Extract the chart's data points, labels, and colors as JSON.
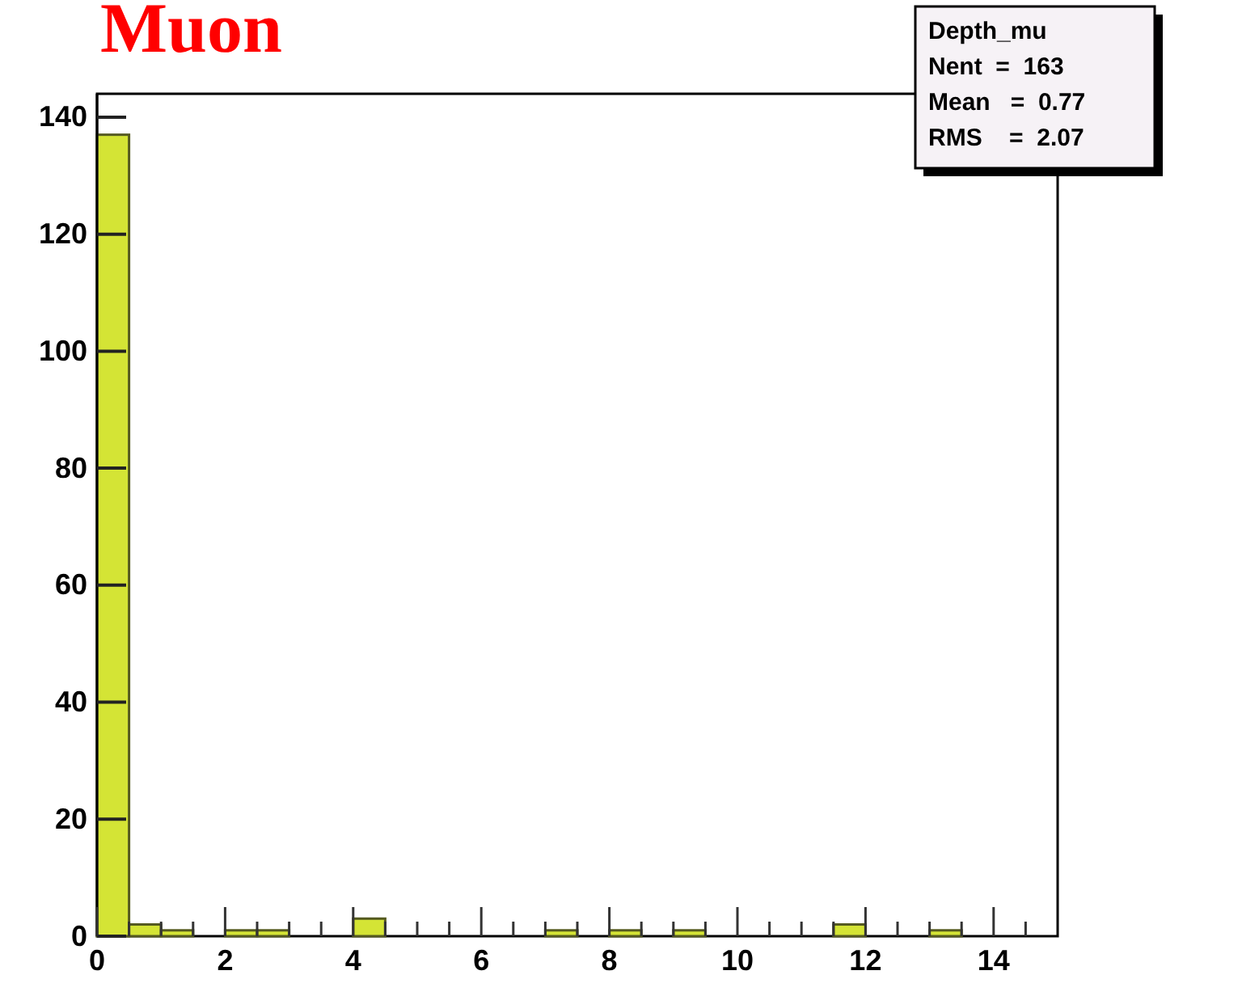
{
  "chart_data": {
    "type": "histogram",
    "title": "Muon",
    "bins": [
      0,
      0.5,
      1,
      1.5,
      2,
      2.5,
      3,
      3.5,
      4,
      4.5,
      5,
      5.5,
      6,
      6.5,
      7,
      7.5,
      8,
      8.5,
      9,
      9.5,
      10,
      10.5,
      11,
      11.5,
      12,
      12.5,
      13,
      13.5,
      14,
      14.5,
      15
    ],
    "values": [
      137,
      2,
      1,
      0,
      1,
      1,
      0,
      0,
      3,
      0,
      0,
      0,
      0,
      0,
      1,
      0,
      1,
      0,
      1,
      0,
      0,
      0,
      0,
      2,
      0,
      0,
      1,
      0,
      0,
      0
    ],
    "color": "#d4e435",
    "xlim": [
      0,
      15
    ],
    "ylim": [
      0,
      144
    ],
    "xticks": [
      0,
      {
        "value": 0.5,
        "label": null
      },
      {
        "value": 1,
        "label": null
      },
      {
        "value": 1.5,
        "label": null
      },
      2,
      {
        "value": 2.5,
        "label": null
      },
      {
        "value": 3,
        "label": null
      },
      {
        "value": 3.5,
        "label": null
      },
      4,
      {
        "value": 4.5,
        "label": null
      },
      {
        "value": 5,
        "label": null
      },
      {
        "value": 5.5,
        "label": null
      },
      6,
      {
        "value": 6.5,
        "label": null
      },
      {
        "value": 7,
        "label": null
      },
      {
        "value": 7.5,
        "label": null
      },
      8,
      {
        "value": 8.5,
        "label": null
      },
      {
        "value": 9,
        "label": null
      },
      {
        "value": 9.5,
        "label": null
      },
      10,
      {
        "value": 10.5,
        "label": null
      },
      {
        "value": 11,
        "label": null
      },
      {
        "value": 11.5,
        "label": null
      },
      12,
      {
        "value": 12.5,
        "label": null
      },
      {
        "value": 13,
        "label": null
      },
      {
        "value": 13.5,
        "label": null
      },
      14,
      {
        "value": 14.5,
        "label": null
      }
    ],
    "yticks": [
      0,
      20,
      40,
      60,
      80,
      100,
      120,
      140
    ],
    "annotations": [
      "Depth_mu",
      "Nent  =  163",
      "Mean   =  0.77",
      "RMS    =  2.07"
    ]
  }
}
